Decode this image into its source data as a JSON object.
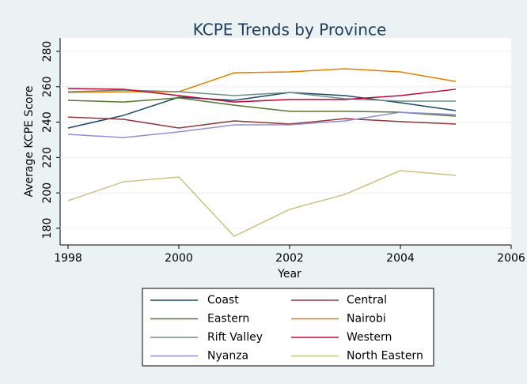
{
  "chart_data": {
    "type": "line",
    "title": "KCPE Trends by Province",
    "x_label": "Year",
    "y_label": "Average KCPE Score",
    "xlim": [
      1997.857,
      2006
    ],
    "xticks": [
      1998,
      2000,
      2002,
      2004,
      2006
    ],
    "ylim": [
      170.6,
      287.6
    ],
    "yticks": [
      180,
      200,
      220,
      240,
      260,
      280
    ],
    "grid": true,
    "x": [
      1998,
      1999,
      2000,
      2001,
      2002,
      2003,
      2004,
      2005
    ],
    "series": [
      {
        "name": "Coast",
        "color": "#1a476f",
        "values": [
          236.7,
          243.8,
          254.1,
          252.3,
          256.8,
          255,
          251,
          246.5
        ]
      },
      {
        "name": "Central",
        "color": "#90353b",
        "values": [
          242.9,
          241.6,
          236.7,
          240.7,
          238.9,
          242,
          240.3,
          238.9
        ]
      },
      {
        "name": "Eastern",
        "color": "#55752f",
        "values": [
          252.3,
          251.4,
          253.7,
          249.6,
          246.1,
          246.1,
          245.6,
          243.4
        ]
      },
      {
        "name": "Nairobi",
        "color": "#e37e00",
        "values": [
          256.8,
          257.2,
          257.2,
          267.9,
          268.4,
          270.2,
          268.4,
          263
        ]
      },
      {
        "name": "Rift Valley",
        "color": "#6e8e84",
        "values": [
          257.2,
          258.1,
          257.2,
          255,
          256.8,
          253.2,
          251.9,
          251.9
        ]
      },
      {
        "name": "Western",
        "color": "#c10534",
        "values": [
          259,
          258.6,
          255,
          251.4,
          252.8,
          252.8,
          255,
          258.6
        ]
      },
      {
        "name": "Nyanza",
        "color": "#938dd2",
        "values": [
          233.1,
          231.3,
          234.5,
          238.5,
          238.5,
          240.7,
          245.6,
          244.3
        ]
      },
      {
        "name": "North Eastern",
        "color": "#cac27e",
        "values": [
          195.6,
          206.3,
          209,
          175.5,
          190.7,
          199.2,
          212.6,
          209.9
        ]
      }
    ]
  }
}
